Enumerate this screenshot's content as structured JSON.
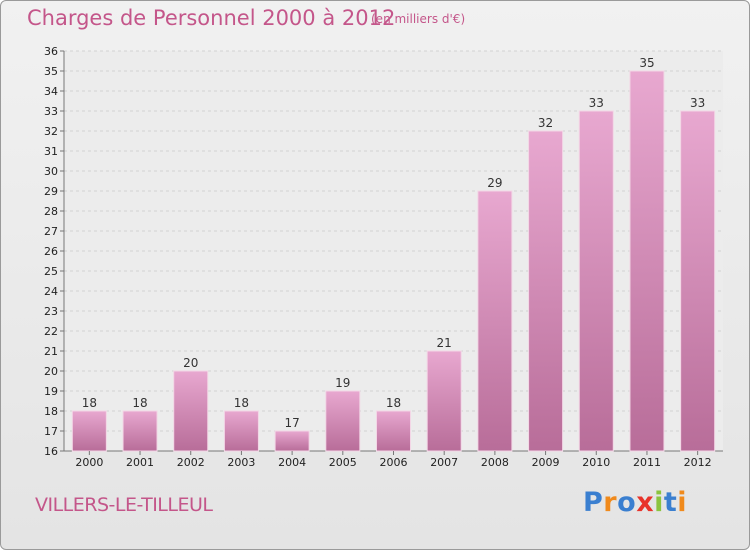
{
  "header": {
    "title": "Charges de Personnel 2000 à 2012",
    "subtitle": "(en milliers d'€)"
  },
  "footer": {
    "commune": "VILLERS-LE-TILLEUL",
    "logo_text": "Proxiti",
    "logo_colors": [
      "#3a7fd0",
      "#f08a1c",
      "#3a7fd0",
      "#e8332a",
      "#8bc43f",
      "#3a7fd0",
      "#f08a1c"
    ]
  },
  "colors": {
    "bar_top": "#e8a8d0",
    "bar_bottom": "#b86d99",
    "text_accent": "#c4568a"
  },
  "chart_data": {
    "type": "bar",
    "title": "Charges de Personnel 2000 à 2012",
    "subtitle": "(en milliers d'€)",
    "categories": [
      "2000",
      "2001",
      "2002",
      "2003",
      "2004",
      "2005",
      "2006",
      "2007",
      "2008",
      "2009",
      "2010",
      "2011",
      "2012"
    ],
    "values": [
      18,
      18,
      20,
      18,
      17,
      19,
      18,
      21,
      29,
      32,
      33,
      35,
      33
    ],
    "ylim": [
      16,
      36
    ],
    "yticks": [
      16,
      17,
      18,
      19,
      20,
      21,
      22,
      23,
      24,
      25,
      26,
      27,
      28,
      29,
      30,
      31,
      32,
      33,
      34,
      35,
      36
    ],
    "grid": true,
    "data_labels": true
  }
}
